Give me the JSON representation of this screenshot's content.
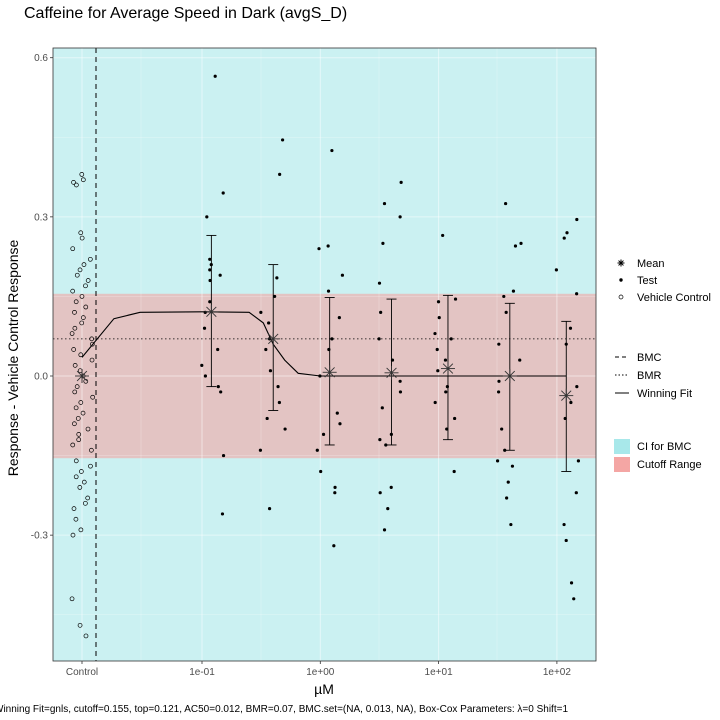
{
  "chart_data": {
    "type": "scatter",
    "title": "Caffeine for Average Speed in Dark (avgS_D)",
    "xlabel": "µM",
    "ylabel": "Response - Vehicle Control Response",
    "x_scale": "log10",
    "x_ticks": [
      "Control",
      "1e-01",
      "1e+00",
      "1e+01",
      "1e+02"
    ],
    "x_tick_values": [
      null,
      0.1,
      1,
      10,
      100
    ],
    "y_ticks": [
      "-0.3",
      "0.0",
      "0.3",
      "0.6"
    ],
    "y_tick_values": [
      -0.3,
      0,
      0.3,
      0.6
    ],
    "ylim": [
      -0.54,
      0.62
    ],
    "grid": true,
    "legend_position": "right",
    "colors": {
      "ci_for_bmc": "#a8e8ea",
      "cutoff_range": "#f4a6a4",
      "points": "#000000",
      "fit": "#000000"
    },
    "ci_for_bmc_x_range": [
      "Control",
      100
    ],
    "cutoff_range_y": [
      -0.155,
      0.155
    ],
    "bmr": 0.07,
    "bmc_x": "Control",
    "legend": {
      "shapes": [
        "Mean",
        "Test",
        "Vehicle Control"
      ],
      "lines": [
        "BMC",
        "BMR",
        "Winning Fit"
      ],
      "fills": [
        "CI for BMC",
        "Cutoff Range"
      ]
    },
    "vehicle_control": [
      0.38,
      0.37,
      0.365,
      0.36,
      0.27,
      0.26,
      0.24,
      0.22,
      0.21,
      0.2,
      0.19,
      0.18,
      0.17,
      0.16,
      0.15,
      0.14,
      0.13,
      0.12,
      0.11,
      0.1,
      0.09,
      0.08,
      0.07,
      0.06,
      0.05,
      0.04,
      0.03,
      0.02,
      0.01,
      0.0,
      -0.01,
      -0.02,
      -0.03,
      -0.04,
      -0.05,
      -0.06,
      -0.07,
      -0.08,
      -0.09,
      -0.1,
      -0.11,
      -0.12,
      -0.13,
      -0.14,
      -0.16,
      -0.17,
      -0.18,
      -0.19,
      -0.2,
      -0.21,
      -0.23,
      -0.24,
      -0.25,
      -0.27,
      -0.29,
      -0.3,
      -0.42,
      -0.47,
      -0.49
    ],
    "test_groups": [
      {
        "conc": 0.12,
        "values": [
          0.565,
          0.345,
          0.3,
          0.22,
          0.21,
          0.2,
          0.19,
          0.18,
          0.14,
          0.12,
          0.09,
          0.05,
          0.02,
          0.0,
          -0.02,
          -0.03,
          -0.15,
          -0.26
        ]
      },
      {
        "conc": 0.4,
        "values": [
          0.445,
          0.38,
          0.185,
          0.15,
          0.12,
          0.1,
          0.07,
          0.05,
          0.01,
          -0.02,
          -0.05,
          -0.08,
          -0.1,
          -0.14,
          -0.25
        ]
      },
      {
        "conc": 1.2,
        "values": [
          0.425,
          0.245,
          0.24,
          0.19,
          0.16,
          0.11,
          0.07,
          0.05,
          0.0,
          -0.07,
          -0.09,
          -0.11,
          -0.14,
          -0.18,
          -0.21,
          -0.22,
          -0.32
        ]
      },
      {
        "conc": 4.0,
        "values": [
          0.365,
          0.325,
          0.3,
          0.25,
          0.175,
          0.12,
          0.07,
          0.03,
          -0.01,
          -0.03,
          -0.06,
          -0.11,
          -0.12,
          -0.13,
          -0.21,
          -0.22,
          -0.25,
          -0.29
        ]
      },
      {
        "conc": 12.0,
        "values": [
          0.265,
          0.145,
          0.14,
          0.11,
          0.08,
          0.07,
          0.05,
          0.03,
          0.01,
          -0.02,
          -0.03,
          -0.05,
          -0.08,
          -0.1,
          -0.18
        ]
      },
      {
        "conc": 40.0,
        "values": [
          0.325,
          0.25,
          0.245,
          0.16,
          0.15,
          0.12,
          0.06,
          0.03,
          -0.01,
          -0.03,
          -0.1,
          -0.14,
          -0.16,
          -0.17,
          -0.2,
          -0.23,
          -0.28
        ]
      },
      {
        "conc": 120.0,
        "values": [
          0.295,
          0.27,
          0.26,
          0.2,
          0.155,
          0.09,
          0.06,
          -0.02,
          -0.05,
          -0.08,
          -0.16,
          -0.22,
          -0.28,
          -0.31,
          -0.39,
          -0.42
        ]
      }
    ],
    "means": [
      {
        "x": "Control",
        "mean": 0.0
      },
      {
        "x": 0.12,
        "mean": 0.121,
        "lower": -0.02,
        "upper": 0.265
      },
      {
        "x": 0.4,
        "mean": 0.07,
        "lower": -0.065,
        "upper": 0.21
      },
      {
        "x": 1.2,
        "mean": 0.007,
        "lower": -0.13,
        "upper": 0.148
      },
      {
        "x": 4.0,
        "mean": 0.006,
        "lower": -0.13,
        "upper": 0.145
      },
      {
        "x": 12.0,
        "mean": 0.014,
        "lower": -0.12,
        "upper": 0.152
      },
      {
        "x": 40.0,
        "mean": 0.0,
        "lower": -0.14,
        "upper": 0.137
      },
      {
        "x": 120.0,
        "mean": -0.037,
        "lower": -0.18,
        "upper": 0.103
      }
    ],
    "winning_fit": [
      {
        "x": "Control",
        "y": 0.035
      },
      {
        "x": 0.018,
        "y": 0.108
      },
      {
        "x": 0.03,
        "y": 0.12
      },
      {
        "x": 0.1,
        "y": 0.121
      },
      {
        "x": 0.25,
        "y": 0.12
      },
      {
        "x": 0.33,
        "y": 0.1
      },
      {
        "x": 0.4,
        "y": 0.06
      },
      {
        "x": 0.5,
        "y": 0.03
      },
      {
        "x": 0.65,
        "y": 0.005
      },
      {
        "x": 1.0,
        "y": 0.0
      },
      {
        "x": 120.0,
        "y": 0.0
      }
    ],
    "caption": "Winning Fit=gnls, cutoff=0.155, top=0.121, AC50=0.012, BMR=0.07, BMC.set=(NA, 0.013, NA), Box-Cox Parameters: λ=0 Shift=1"
  }
}
